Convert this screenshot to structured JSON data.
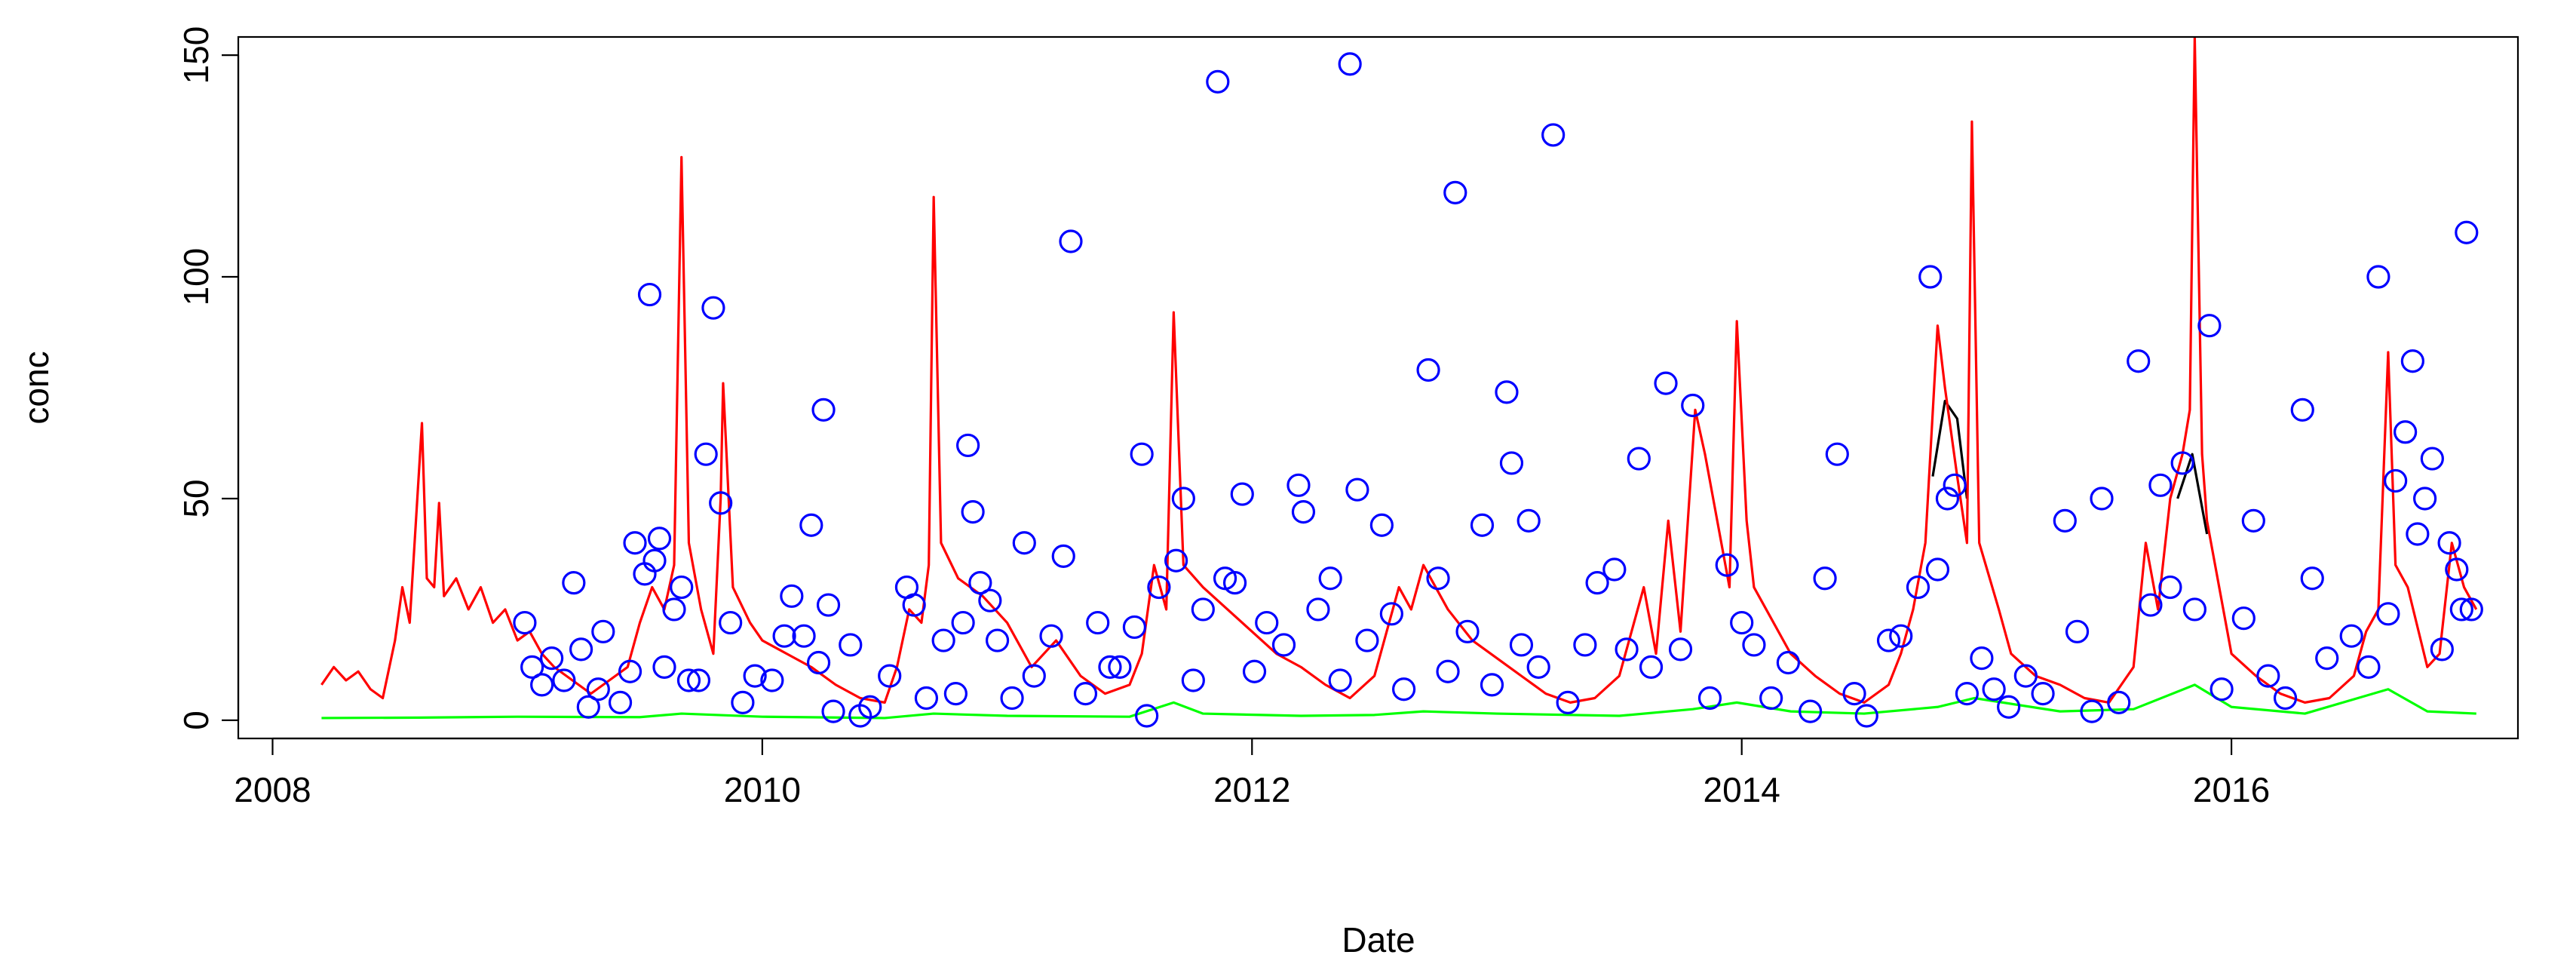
{
  "chart_data": {
    "type": "line",
    "x_label": "Date",
    "y_label": "conc",
    "xlim": [
      2007.86,
      2017.17
    ],
    "ylim": [
      -4.1,
      154.1
    ],
    "xticks": [
      2008,
      2010,
      2012,
      2014,
      2016
    ],
    "yticks": [
      0,
      50,
      100,
      150
    ],
    "series": [
      {
        "type": "line",
        "color": "#000000",
        "x": [
          2014.78,
          2014.83,
          2014.88,
          2014.92,
          2015.4,
          2015.78,
          2015.84,
          2015.9
        ],
        "values": [
          55,
          72,
          68,
          50,
          null,
          50,
          60,
          42
        ]
      },
      {
        "type": "line",
        "color": "#ff0000",
        "x": [
          2008.2,
          2008.25,
          2008.3,
          2008.35,
          2008.4,
          2008.45,
          2008.5,
          2008.53,
          2008.56,
          2008.61,
          2008.63,
          2008.66,
          2008.68,
          2008.7,
          2008.75,
          2008.8,
          2008.85,
          2008.9,
          2008.95,
          2009.0,
          2009.05,
          2009.1,
          2009.15,
          2009.2,
          2009.25,
          2009.3,
          2009.35,
          2009.4,
          2009.45,
          2009.5,
          2009.55,
          2009.6,
          2009.64,
          2009.67,
          2009.7,
          2009.75,
          2009.8,
          2009.83,
          2009.84,
          2009.88,
          2009.95,
          2010.0,
          2010.1,
          2010.2,
          2010.3,
          2010.4,
          2010.5,
          2010.55,
          2010.6,
          2010.65,
          2010.68,
          2010.7,
          2010.73,
          2010.8,
          2010.9,
          2011.0,
          2011.1,
          2011.2,
          2011.3,
          2011.4,
          2011.5,
          2011.55,
          2011.6,
          2011.65,
          2011.68,
          2011.72,
          2011.8,
          2011.9,
          2012.0,
          2012.1,
          2012.2,
          2012.3,
          2012.4,
          2012.5,
          2012.55,
          2012.6,
          2012.65,
          2012.7,
          2012.75,
          2012.8,
          2012.9,
          2013.0,
          2013.1,
          2013.2,
          2013.3,
          2013.4,
          2013.5,
          2013.55,
          2013.6,
          2013.65,
          2013.7,
          2013.75,
          2013.81,
          2013.85,
          2013.9,
          2013.95,
          2013.98,
          2014.02,
          2014.05,
          2014.1,
          2014.2,
          2014.3,
          2014.4,
          2014.5,
          2014.6,
          2014.65,
          2014.7,
          2014.75,
          2014.8,
          2014.83,
          2014.88,
          2014.92,
          2014.94,
          2014.97,
          2015.05,
          2015.1,
          2015.2,
          2015.3,
          2015.4,
          2015.5,
          2015.6,
          2015.65,
          2015.7,
          2015.75,
          2015.8,
          2015.83,
          2015.85,
          2015.88,
          2015.9,
          2015.95,
          2016.0,
          2016.1,
          2016.2,
          2016.3,
          2016.4,
          2016.5,
          2016.55,
          2016.6,
          2016.64,
          2016.67,
          2016.72,
          2016.8,
          2016.85,
          2016.9,
          2016.95,
          2017.0
        ],
        "values": [
          8,
          12,
          9,
          11,
          7,
          5,
          18,
          30,
          22,
          67,
          32,
          30,
          49,
          28,
          32,
          25,
          30,
          22,
          25,
          18,
          20,
          15,
          12,
          10,
          8,
          6,
          8,
          10,
          12,
          22,
          30,
          25,
          35,
          127,
          40,
          25,
          15,
          50,
          76,
          30,
          22,
          18,
          15,
          12,
          8,
          5,
          4,
          12,
          25,
          22,
          35,
          118,
          40,
          32,
          28,
          22,
          12,
          18,
          10,
          6,
          8,
          15,
          35,
          25,
          92,
          35,
          30,
          25,
          20,
          15,
          12,
          8,
          5,
          10,
          20,
          30,
          25,
          35,
          30,
          25,
          18,
          14,
          10,
          6,
          4,
          5,
          10,
          20,
          30,
          15,
          45,
          20,
          70,
          60,
          45,
          30,
          90,
          45,
          30,
          25,
          15,
          10,
          6,
          4,
          8,
          15,
          25,
          40,
          89,
          75,
          55,
          40,
          135,
          40,
          25,
          15,
          10,
          8,
          5,
          4,
          12,
          40,
          25,
          50,
          60,
          70,
          154,
          60,
          45,
          30,
          15,
          10,
          6,
          4,
          5,
          10,
          20,
          25,
          83,
          35,
          30,
          12,
          15,
          40,
          30,
          25
        ]
      },
      {
        "type": "line",
        "color": "#00ff00",
        "x": [
          2008.2,
          2008.6,
          2009.0,
          2009.5,
          2009.67,
          2010.0,
          2010.5,
          2010.7,
          2011.0,
          2011.5,
          2011.68,
          2011.8,
          2012.2,
          2012.5,
          2012.7,
          2013.0,
          2013.5,
          2013.8,
          2013.98,
          2014.2,
          2014.5,
          2014.8,
          2014.95,
          2015.3,
          2015.6,
          2015.85,
          2016.0,
          2016.3,
          2016.64,
          2016.8,
          2017.0
        ],
        "values": [
          0.5,
          0.6,
          0.8,
          0.7,
          1.5,
          0.8,
          0.5,
          1.5,
          1,
          0.8,
          4,
          1.5,
          1,
          1.2,
          2,
          1.5,
          1,
          2.5,
          4,
          2,
          1.5,
          3,
          5,
          2,
          2.5,
          8,
          3,
          1.5,
          7,
          2,
          1.5
        ]
      },
      {
        "type": "scatter",
        "color": "#0000ff",
        "x": [
          2009.03,
          2009.06,
          2009.1,
          2009.14,
          2009.19,
          2009.23,
          2009.26,
          2009.29,
          2009.33,
          2009.35,
          2009.42,
          2009.46,
          2009.48,
          2009.52,
          2009.54,
          2009.56,
          2009.58,
          2009.6,
          2009.64,
          2009.67,
          2009.7,
          2009.74,
          2009.77,
          2009.8,
          2009.83,
          2009.87,
          2009.92,
          2009.97,
          2010.04,
          2010.09,
          2010.12,
          2010.17,
          2010.2,
          2010.23,
          2010.25,
          2010.27,
          2010.29,
          2010.36,
          2010.4,
          2010.44,
          2010.52,
          2010.59,
          2010.62,
          2010.67,
          2010.74,
          2010.79,
          2010.82,
          2010.84,
          2010.86,
          2010.89,
          2010.93,
          2010.96,
          2011.02,
          2011.07,
          2011.11,
          2011.18,
          2011.23,
          2011.26,
          2011.32,
          2011.37,
          2011.42,
          2011.46,
          2011.52,
          2011.55,
          2011.57,
          2011.62,
          2011.69,
          2011.72,
          2011.76,
          2011.8,
          2011.86,
          2011.89,
          2011.93,
          2011.96,
          2012.01,
          2012.06,
          2012.13,
          2012.19,
          2012.21,
          2012.27,
          2012.32,
          2012.36,
          2012.4,
          2012.43,
          2012.47,
          2012.53,
          2012.57,
          2012.62,
          2012.72,
          2012.76,
          2012.8,
          2012.83,
          2012.88,
          2012.94,
          2012.98,
          2013.04,
          2013.06,
          2013.1,
          2013.13,
          2013.17,
          2013.23,
          2013.29,
          2013.36,
          2013.41,
          2013.48,
          2013.53,
          2013.58,
          2013.63,
          2013.69,
          2013.75,
          2013.8,
          2013.87,
          2013.94,
          2014.0,
          2014.05,
          2014.12,
          2014.19,
          2014.28,
          2014.34,
          2014.39,
          2014.46,
          2014.51,
          2014.6,
          2014.65,
          2014.72,
          2014.77,
          2014.8,
          2014.84,
          2014.87,
          2014.92,
          2014.98,
          2015.03,
          2015.09,
          2015.16,
          2015.23,
          2015.32,
          2015.37,
          2015.43,
          2015.47,
          2015.54,
          2015.62,
          2015.67,
          2015.71,
          2015.75,
          2015.8,
          2015.85,
          2015.91,
          2015.96,
          2016.05,
          2016.09,
          2016.15,
          2016.22,
          2016.29,
          2016.33,
          2016.39,
          2016.49,
          2016.56,
          2016.6,
          2016.64,
          2016.67,
          2016.71,
          2016.74,
          2016.76,
          2016.79,
          2016.82,
          2016.86,
          2016.89,
          2016.92,
          2016.94,
          2016.96,
          2016.98
        ],
        "values": [
          22,
          12,
          8,
          14,
          9,
          31,
          16,
          3,
          7,
          20,
          4,
          11,
          40,
          33,
          96,
          36,
          41,
          12,
          25,
          30,
          9,
          9,
          60,
          93,
          49,
          22,
          4,
          10,
          9,
          19,
          28,
          19,
          44,
          13,
          70,
          26,
          2,
          17,
          1,
          3,
          10,
          30,
          26,
          5,
          18,
          6,
          22,
          62,
          47,
          31,
          27,
          18,
          5,
          40,
          10,
          19,
          37,
          108,
          6,
          22,
          12,
          12,
          21,
          60,
          1,
          30,
          36,
          50,
          9,
          25,
          144,
          32,
          31,
          51,
          11,
          22,
          17,
          53,
          47,
          25,
          32,
          9,
          148,
          52,
          18,
          44,
          24,
          7,
          79,
          32,
          11,
          119,
          20,
          44,
          8,
          74,
          58,
          17,
          45,
          12,
          132,
          4,
          17,
          31,
          34,
          16,
          59,
          12,
          76,
          16,
          71,
          5,
          35,
          22,
          17,
          5,
          13,
          2,
          32,
          60,
          6,
          1,
          18,
          19,
          30,
          100,
          34,
          50,
          53,
          6,
          14,
          7,
          3,
          10,
          6,
          45,
          20,
          2,
          50,
          4,
          81,
          26,
          53,
          30,
          58,
          25,
          89,
          7,
          23,
          45,
          10,
          5,
          70,
          32,
          14,
          19,
          12,
          100,
          24,
          54,
          65,
          81,
          42,
          50,
          59,
          16,
          40,
          34,
          25,
          110,
          25
        ]
      }
    ]
  }
}
